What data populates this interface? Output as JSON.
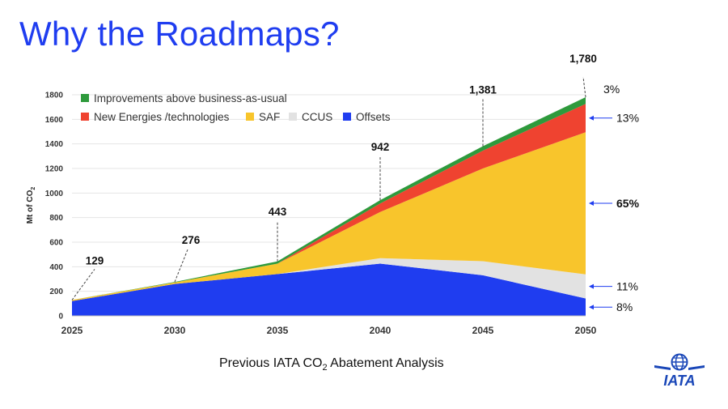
{
  "slide": {
    "title": "Why the Roadmaps?",
    "caption_prefix": "Previous IATA CO",
    "caption_sub": "2",
    "caption_suffix": " Abatement Analysis",
    "logo_text": "IATA",
    "logo_icon": "globe-icon"
  },
  "chart_data": {
    "type": "area",
    "stacked": true,
    "title": "",
    "xlabel": "",
    "ylabel": "Mt of CO2",
    "ylabel_main": "Mt of CO",
    "ylabel_sub": "2",
    "x": [
      2025,
      2030,
      2035,
      2040,
      2045,
      2050
    ],
    "ylim": [
      0,
      1800
    ],
    "yticks": [
      0,
      200,
      400,
      600,
      800,
      1000,
      1200,
      1400,
      1600,
      1800
    ],
    "grid": true,
    "legend_position": "top-left",
    "series": [
      {
        "name": "Offsets",
        "color": "#1f3df0",
        "values": [
          120,
          260,
          340,
          425,
          330,
          142
        ]
      },
      {
        "name": "CCUS",
        "color": "#e2e2e2",
        "values": [
          0,
          0,
          0,
          45,
          115,
          196
        ]
      },
      {
        "name": "SAF",
        "color": "#f8c52c",
        "values": [
          9,
          12,
          85,
          375,
          755,
          1157
        ]
      },
      {
        "name": "New Energies /technologies",
        "color": "#ef4330",
        "values": [
          0,
          0,
          0,
          70,
          145,
          231
        ]
      },
      {
        "name": "Improvements above business-as-usual",
        "color": "#2e9a3c",
        "values": [
          0,
          4,
          18,
          27,
          36,
          54
        ]
      }
    ],
    "total_labels": [
      {
        "x": 2025,
        "text": "129"
      },
      {
        "x": 2030,
        "text": "276"
      },
      {
        "x": 2035,
        "text": "443"
      },
      {
        "x": 2040,
        "text": "942"
      },
      {
        "x": 2045,
        "text": "1,381"
      },
      {
        "x": 2050,
        "text": "1,780"
      }
    ],
    "share_labels": [
      {
        "series": "Improvements above business-as-usual",
        "text": "3%",
        "arrow": false
      },
      {
        "series": "New Energies /technologies",
        "text": "13%",
        "arrow": true
      },
      {
        "series": "SAF",
        "text": "65%",
        "arrow": true,
        "bold": true
      },
      {
        "series": "CCUS",
        "text": "11%",
        "arrow": true
      },
      {
        "series": "Offsets",
        "text": "8%",
        "arrow": true
      }
    ]
  }
}
